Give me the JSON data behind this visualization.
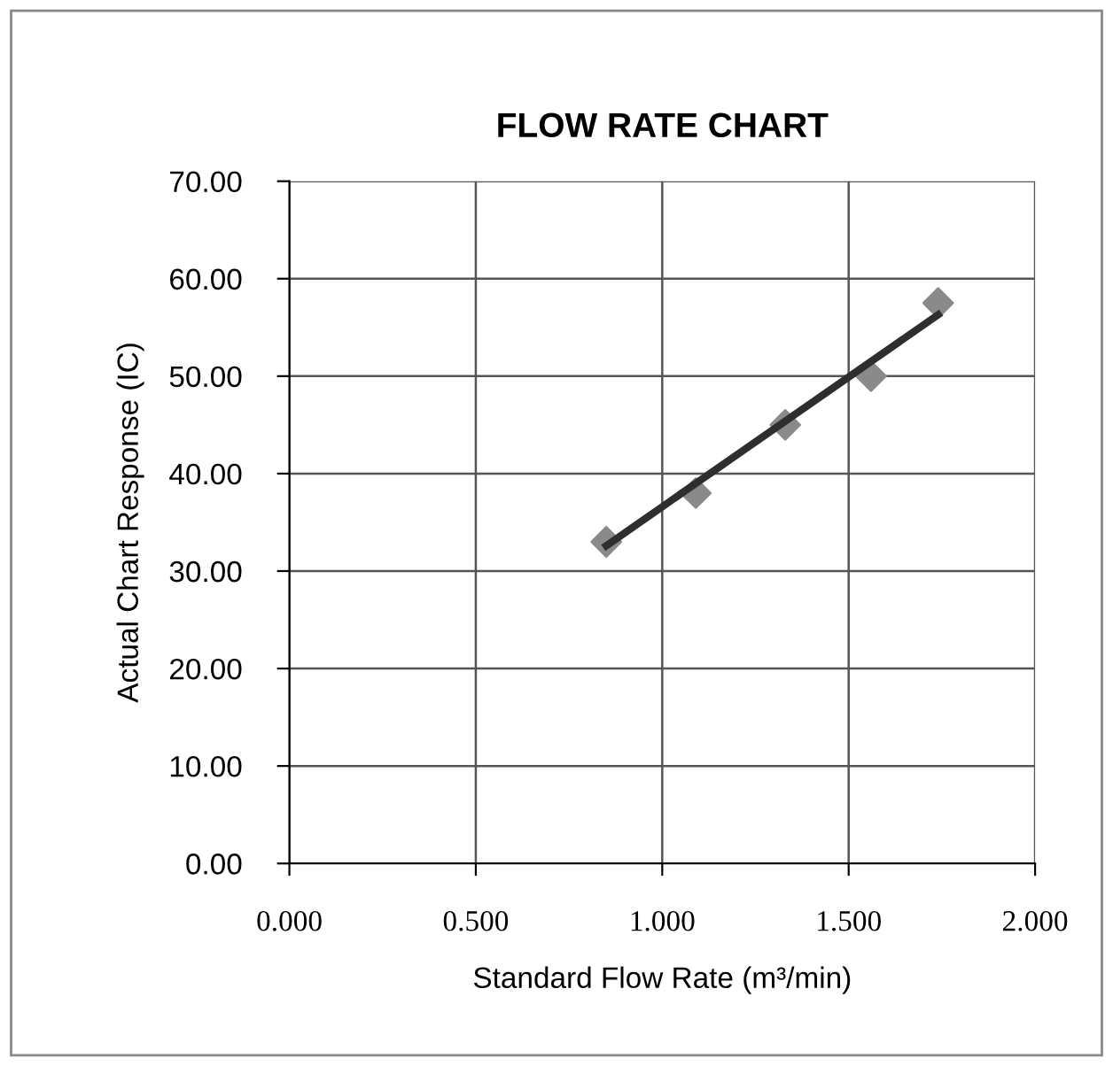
{
  "chart_data": {
    "type": "scatter",
    "title": "FLOW RATE CHART",
    "xlabel": "Standard Flow Rate (m³/min)",
    "ylabel": "Actual Chart Response (IC)",
    "xlim": [
      0,
      2
    ],
    "xticks": [
      {
        "value": 0,
        "label": "0.000"
      },
      {
        "value": 0.5,
        "label": "0.500"
      },
      {
        "value": 1,
        "label": "1.000"
      },
      {
        "value": 1.5,
        "label": "1.500"
      },
      {
        "value": 2,
        "label": "2.000"
      }
    ],
    "ylim": [
      0,
      70
    ],
    "yticks": [
      {
        "value": 0,
        "label": "0.00"
      },
      {
        "value": 10,
        "label": "10.00"
      },
      {
        "value": 20,
        "label": "20.00"
      },
      {
        "value": 30,
        "label": "30.00"
      },
      {
        "value": 40,
        "label": "40.00"
      },
      {
        "value": 50,
        "label": "50.00"
      },
      {
        "value": 60,
        "label": "60.00"
      },
      {
        "value": 70,
        "label": "70.00"
      }
    ],
    "grid": true,
    "legend": false,
    "series": [
      {
        "type": "line",
        "color": "#2e2e2e",
        "x": [
          0.85,
          1.74
        ],
        "values": [
          32.6,
          56.3
        ],
        "marker": "none",
        "line_style": "solid"
      },
      {
        "color": "#8a8a8a",
        "x": [
          0.85,
          1.09,
          1.33,
          1.56,
          1.74
        ],
        "values": [
          33,
          38,
          45,
          50,
          57.5
        ],
        "marker": "diamond"
      }
    ]
  }
}
